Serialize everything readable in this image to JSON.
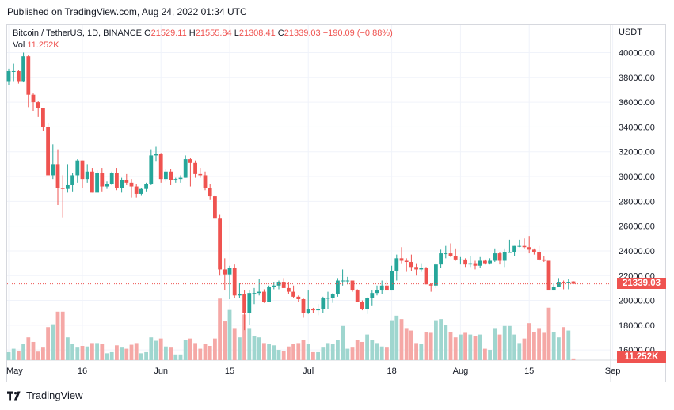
{
  "header": {
    "published": "Published on TradingView.com, Aug 24, 2022 01:34 UTC"
  },
  "legend": {
    "symbol": "Bitcoin / TetherUS, 1D, BINANCE",
    "o_label": "O",
    "o": "21529.11",
    "h_label": "H",
    "h": "21555.84",
    "l_label": "L",
    "l": "21308.41",
    "c_label": "C",
    "c": "21339.03",
    "change": "−190.09 (−0.88%)",
    "vol_label": "Vol",
    "vol": "11.252K"
  },
  "price_axis": {
    "currency": "USDT",
    "labels": [
      "40000.00",
      "38000.00",
      "36000.00",
      "34000.00",
      "32000.00",
      "30000.00",
      "28000.00",
      "26000.00",
      "24000.00",
      "22000.00",
      "20000.00",
      "18000.00",
      "16000.00"
    ]
  },
  "time_axis": {
    "labels": [
      "May",
      "16",
      "Jun",
      "15",
      "Jul",
      "18",
      "Aug",
      "15",
      "Sep"
    ]
  },
  "current_price_tag": "21339.03",
  "current_volume_tag": "11.252K",
  "footer": {
    "brand": "TradingView"
  },
  "colors": {
    "up": "#26a69a",
    "down": "#ef5350",
    "vol_up": "#9fd6cf",
    "vol_down": "#f5a8a6",
    "grid": "#f0f3fa",
    "text": "#131722"
  },
  "chart_data": {
    "type": "candlestick",
    "symbol": "Bitcoin / TetherUS",
    "interval": "1D",
    "exchange": "BINANCE",
    "ylim": [
      15500,
      41500
    ],
    "ticks": [
      16000,
      18000,
      20000,
      22000,
      24000,
      26000,
      28000,
      30000,
      32000,
      34000,
      36000,
      38000,
      40000
    ],
    "candles": [
      {
        "date": "2022-05-01",
        "o": 37700,
        "h": 38700,
        "l": 37400,
        "c": 38500,
        "v": 14
      },
      {
        "date": "2022-05-02",
        "o": 38500,
        "h": 39100,
        "l": 37700,
        "c": 38500,
        "v": 20
      },
      {
        "date": "2022-05-03",
        "o": 38500,
        "h": 38600,
        "l": 37500,
        "c": 37700,
        "v": 16
      },
      {
        "date": "2022-05-04",
        "o": 37700,
        "h": 40000,
        "l": 37600,
        "c": 39700,
        "v": 28
      },
      {
        "date": "2022-05-05",
        "o": 39700,
        "h": 39800,
        "l": 35600,
        "c": 36600,
        "v": 40
      },
      {
        "date": "2022-05-06",
        "o": 36600,
        "h": 36700,
        "l": 35300,
        "c": 36000,
        "v": 32
      },
      {
        "date": "2022-05-07",
        "o": 36000,
        "h": 36100,
        "l": 34800,
        "c": 35500,
        "v": 15
      },
      {
        "date": "2022-05-08",
        "o": 35500,
        "h": 35500,
        "l": 33700,
        "c": 34000,
        "v": 22
      },
      {
        "date": "2022-05-09",
        "o": 34000,
        "h": 34300,
        "l": 30100,
        "c": 30100,
        "v": 58
      },
      {
        "date": "2022-05-10",
        "o": 30100,
        "h": 32600,
        "l": 29800,
        "c": 31000,
        "v": 63
      },
      {
        "date": "2022-05-11",
        "o": 31000,
        "h": 32200,
        "l": 27700,
        "c": 29100,
        "v": 85
      },
      {
        "date": "2022-05-12",
        "o": 29100,
        "h": 30100,
        "l": 26700,
        "c": 29000,
        "v": 85
      },
      {
        "date": "2022-05-13",
        "o": 29000,
        "h": 31000,
        "l": 28700,
        "c": 29300,
        "v": 40
      },
      {
        "date": "2022-05-14",
        "o": 29300,
        "h": 30300,
        "l": 28800,
        "c": 30100,
        "v": 28
      },
      {
        "date": "2022-05-15",
        "o": 30100,
        "h": 31400,
        "l": 29500,
        "c": 31300,
        "v": 22
      },
      {
        "date": "2022-05-16",
        "o": 31300,
        "h": 31300,
        "l": 29100,
        "c": 29800,
        "v": 25
      },
      {
        "date": "2022-05-17",
        "o": 29800,
        "h": 31000,
        "l": 29500,
        "c": 30400,
        "v": 24
      },
      {
        "date": "2022-05-18",
        "o": 30400,
        "h": 30700,
        "l": 28700,
        "c": 28700,
        "v": 30
      },
      {
        "date": "2022-05-19",
        "o": 28700,
        "h": 30500,
        "l": 28700,
        "c": 30300,
        "v": 30
      },
      {
        "date": "2022-05-20",
        "o": 30300,
        "h": 30700,
        "l": 28800,
        "c": 29200,
        "v": 29
      },
      {
        "date": "2022-05-21",
        "o": 29200,
        "h": 29600,
        "l": 29000,
        "c": 29400,
        "v": 12
      },
      {
        "date": "2022-05-22",
        "o": 29400,
        "h": 30400,
        "l": 29300,
        "c": 30300,
        "v": 14
      },
      {
        "date": "2022-05-23",
        "o": 30300,
        "h": 30700,
        "l": 28900,
        "c": 29100,
        "v": 26
      },
      {
        "date": "2022-05-24",
        "o": 29100,
        "h": 29900,
        "l": 28700,
        "c": 29700,
        "v": 22
      },
      {
        "date": "2022-05-25",
        "o": 29700,
        "h": 30200,
        "l": 29300,
        "c": 29500,
        "v": 20
      },
      {
        "date": "2022-05-26",
        "o": 29500,
        "h": 29800,
        "l": 28300,
        "c": 29200,
        "v": 27
      },
      {
        "date": "2022-05-27",
        "o": 29200,
        "h": 29400,
        "l": 28300,
        "c": 28600,
        "v": 30
      },
      {
        "date": "2022-05-28",
        "o": 28600,
        "h": 29100,
        "l": 28500,
        "c": 29000,
        "v": 12
      },
      {
        "date": "2022-05-29",
        "o": 29000,
        "h": 29500,
        "l": 28800,
        "c": 29400,
        "v": 14
      },
      {
        "date": "2022-05-30",
        "o": 29400,
        "h": 32200,
        "l": 29300,
        "c": 31700,
        "v": 40
      },
      {
        "date": "2022-05-31",
        "o": 31700,
        "h": 32400,
        "l": 31200,
        "c": 31800,
        "v": 34
      },
      {
        "date": "2022-06-01",
        "o": 31800,
        "h": 31900,
        "l": 29500,
        "c": 29800,
        "v": 38
      },
      {
        "date": "2022-06-02",
        "o": 29800,
        "h": 30600,
        "l": 29600,
        "c": 30400,
        "v": 24
      },
      {
        "date": "2022-06-03",
        "o": 30400,
        "h": 30600,
        "l": 29300,
        "c": 29700,
        "v": 22
      },
      {
        "date": "2022-06-04",
        "o": 29700,
        "h": 29900,
        "l": 29500,
        "c": 29800,
        "v": 10
      },
      {
        "date": "2022-06-05",
        "o": 29800,
        "h": 30100,
        "l": 29500,
        "c": 29900,
        "v": 10
      },
      {
        "date": "2022-06-06",
        "o": 29900,
        "h": 31700,
        "l": 29900,
        "c": 31400,
        "v": 35
      },
      {
        "date": "2022-06-07",
        "o": 31400,
        "h": 31500,
        "l": 29200,
        "c": 31100,
        "v": 38
      },
      {
        "date": "2022-06-08",
        "o": 31100,
        "h": 31300,
        "l": 29900,
        "c": 30200,
        "v": 30
      },
      {
        "date": "2022-06-09",
        "o": 30200,
        "h": 30700,
        "l": 29900,
        "c": 30100,
        "v": 20
      },
      {
        "date": "2022-06-10",
        "o": 30100,
        "h": 30400,
        "l": 28900,
        "c": 29100,
        "v": 28
      },
      {
        "date": "2022-06-11",
        "o": 29100,
        "h": 29400,
        "l": 28100,
        "c": 28400,
        "v": 25
      },
      {
        "date": "2022-06-12",
        "o": 28400,
        "h": 28500,
        "l": 26600,
        "c": 26600,
        "v": 38
      },
      {
        "date": "2022-06-13",
        "o": 26600,
        "h": 26900,
        "l": 22000,
        "c": 22500,
        "v": 108
      },
      {
        "date": "2022-06-14",
        "o": 22500,
        "h": 23400,
        "l": 20800,
        "c": 22100,
        "v": 68
      },
      {
        "date": "2022-06-15",
        "o": 22100,
        "h": 22800,
        "l": 20100,
        "c": 22600,
        "v": 88
      },
      {
        "date": "2022-06-16",
        "o": 22600,
        "h": 22900,
        "l": 20200,
        "c": 20400,
        "v": 55
      },
      {
        "date": "2022-06-17",
        "o": 20400,
        "h": 21400,
        "l": 20200,
        "c": 20500,
        "v": 40
      },
      {
        "date": "2022-06-18",
        "o": 20500,
        "h": 20800,
        "l": 17600,
        "c": 19000,
        "v": 80
      },
      {
        "date": "2022-06-19",
        "o": 19000,
        "h": 20800,
        "l": 18000,
        "c": 20600,
        "v": 55
      },
      {
        "date": "2022-06-20",
        "o": 20600,
        "h": 21000,
        "l": 19700,
        "c": 20600,
        "v": 42
      },
      {
        "date": "2022-06-21",
        "o": 20600,
        "h": 21700,
        "l": 20400,
        "c": 20700,
        "v": 40
      },
      {
        "date": "2022-06-22",
        "o": 20700,
        "h": 20900,
        "l": 19800,
        "c": 19900,
        "v": 30
      },
      {
        "date": "2022-06-23",
        "o": 19900,
        "h": 21200,
        "l": 19900,
        "c": 21100,
        "v": 28
      },
      {
        "date": "2022-06-24",
        "o": 21100,
        "h": 21500,
        "l": 20900,
        "c": 21200,
        "v": 26
      },
      {
        "date": "2022-06-25",
        "o": 21200,
        "h": 21600,
        "l": 20900,
        "c": 21500,
        "v": 18
      },
      {
        "date": "2022-06-26",
        "o": 21500,
        "h": 21800,
        "l": 21000,
        "c": 21000,
        "v": 16
      },
      {
        "date": "2022-06-27",
        "o": 21000,
        "h": 21500,
        "l": 20500,
        "c": 20700,
        "v": 24
      },
      {
        "date": "2022-06-28",
        "o": 20700,
        "h": 21200,
        "l": 20200,
        "c": 20300,
        "v": 28
      },
      {
        "date": "2022-06-29",
        "o": 20300,
        "h": 20400,
        "l": 19900,
        "c": 20100,
        "v": 30
      },
      {
        "date": "2022-06-30",
        "o": 20100,
        "h": 20200,
        "l": 18600,
        "c": 19000,
        "v": 35
      },
      {
        "date": "2022-07-01",
        "o": 19000,
        "h": 20800,
        "l": 18900,
        "c": 19300,
        "v": 28
      },
      {
        "date": "2022-07-02",
        "o": 19300,
        "h": 19400,
        "l": 19000,
        "c": 19200,
        "v": 14
      },
      {
        "date": "2022-07-03",
        "o": 19200,
        "h": 19700,
        "l": 18800,
        "c": 19300,
        "v": 14
      },
      {
        "date": "2022-07-04",
        "o": 19300,
        "h": 20300,
        "l": 19000,
        "c": 20200,
        "v": 22
      },
      {
        "date": "2022-07-05",
        "o": 20200,
        "h": 20700,
        "l": 19300,
        "c": 20200,
        "v": 30
      },
      {
        "date": "2022-07-06",
        "o": 20200,
        "h": 20600,
        "l": 19800,
        "c": 20500,
        "v": 28
      },
      {
        "date": "2022-07-07",
        "o": 20500,
        "h": 21800,
        "l": 20300,
        "c": 21600,
        "v": 35
      },
      {
        "date": "2022-07-08",
        "o": 21600,
        "h": 22500,
        "l": 21200,
        "c": 21600,
        "v": 60
      },
      {
        "date": "2022-07-09",
        "o": 21600,
        "h": 21900,
        "l": 21300,
        "c": 21600,
        "v": 20
      },
      {
        "date": "2022-07-10",
        "o": 21600,
        "h": 21600,
        "l": 20700,
        "c": 20800,
        "v": 22
      },
      {
        "date": "2022-07-11",
        "o": 20800,
        "h": 20900,
        "l": 19900,
        "c": 19900,
        "v": 35
      },
      {
        "date": "2022-07-12",
        "o": 19900,
        "h": 20000,
        "l": 19200,
        "c": 19300,
        "v": 32
      },
      {
        "date": "2022-07-13",
        "o": 19300,
        "h": 20300,
        "l": 18900,
        "c": 20200,
        "v": 45
      },
      {
        "date": "2022-07-14",
        "o": 20200,
        "h": 20800,
        "l": 19600,
        "c": 20600,
        "v": 35
      },
      {
        "date": "2022-07-15",
        "o": 20600,
        "h": 21200,
        "l": 20400,
        "c": 20800,
        "v": 30
      },
      {
        "date": "2022-07-16",
        "o": 20800,
        "h": 21600,
        "l": 20500,
        "c": 21200,
        "v": 24
      },
      {
        "date": "2022-07-17",
        "o": 21200,
        "h": 21600,
        "l": 20800,
        "c": 20800,
        "v": 22
      },
      {
        "date": "2022-07-18",
        "o": 20800,
        "h": 22800,
        "l": 20800,
        "c": 22400,
        "v": 70
      },
      {
        "date": "2022-07-19",
        "o": 22400,
        "h": 23700,
        "l": 21600,
        "c": 23400,
        "v": 78
      },
      {
        "date": "2022-07-20",
        "o": 23400,
        "h": 24300,
        "l": 23000,
        "c": 23200,
        "v": 72
      },
      {
        "date": "2022-07-21",
        "o": 23200,
        "h": 23400,
        "l": 22300,
        "c": 23100,
        "v": 55
      },
      {
        "date": "2022-07-22",
        "o": 23100,
        "h": 23700,
        "l": 22400,
        "c": 22700,
        "v": 52
      },
      {
        "date": "2022-07-23",
        "o": 22700,
        "h": 23000,
        "l": 22000,
        "c": 22500,
        "v": 30
      },
      {
        "date": "2022-07-24",
        "o": 22500,
        "h": 23000,
        "l": 22300,
        "c": 22600,
        "v": 28
      },
      {
        "date": "2022-07-25",
        "o": 22600,
        "h": 22700,
        "l": 21300,
        "c": 21300,
        "v": 50
      },
      {
        "date": "2022-07-26",
        "o": 21300,
        "h": 21400,
        "l": 20700,
        "c": 21200,
        "v": 48
      },
      {
        "date": "2022-07-27",
        "o": 21200,
        "h": 23000,
        "l": 21000,
        "c": 22900,
        "v": 70
      },
      {
        "date": "2022-07-28",
        "o": 22900,
        "h": 24100,
        "l": 22600,
        "c": 23800,
        "v": 72
      },
      {
        "date": "2022-07-29",
        "o": 23800,
        "h": 24400,
        "l": 23400,
        "c": 23800,
        "v": 62
      },
      {
        "date": "2022-07-30",
        "o": 23800,
        "h": 24600,
        "l": 23500,
        "c": 23600,
        "v": 50
      },
      {
        "date": "2022-07-31",
        "o": 23600,
        "h": 24200,
        "l": 23200,
        "c": 23300,
        "v": 40
      },
      {
        "date": "2022-08-01",
        "o": 23300,
        "h": 23500,
        "l": 22900,
        "c": 23300,
        "v": 45
      },
      {
        "date": "2022-08-02",
        "o": 23300,
        "h": 23400,
        "l": 22700,
        "c": 22900,
        "v": 48
      },
      {
        "date": "2022-08-03",
        "o": 22900,
        "h": 23600,
        "l": 22700,
        "c": 23000,
        "v": 45
      },
      {
        "date": "2022-08-04",
        "o": 23000,
        "h": 23200,
        "l": 22500,
        "c": 22800,
        "v": 42
      },
      {
        "date": "2022-08-05",
        "o": 22800,
        "h": 23500,
        "l": 22600,
        "c": 23200,
        "v": 45
      },
      {
        "date": "2022-08-06",
        "o": 23200,
        "h": 23300,
        "l": 22900,
        "c": 23000,
        "v": 20
      },
      {
        "date": "2022-08-07",
        "o": 23000,
        "h": 23400,
        "l": 22900,
        "c": 23200,
        "v": 18
      },
      {
        "date": "2022-08-08",
        "o": 23200,
        "h": 24200,
        "l": 23100,
        "c": 23800,
        "v": 55
      },
      {
        "date": "2022-08-09",
        "o": 23800,
        "h": 23900,
        "l": 22900,
        "c": 23200,
        "v": 45
      },
      {
        "date": "2022-08-10",
        "o": 23200,
        "h": 24200,
        "l": 22700,
        "c": 23900,
        "v": 60
      },
      {
        "date": "2022-08-11",
        "o": 23900,
        "h": 24900,
        "l": 23900,
        "c": 23900,
        "v": 60
      },
      {
        "date": "2022-08-12",
        "o": 23900,
        "h": 24400,
        "l": 23600,
        "c": 24400,
        "v": 45
      },
      {
        "date": "2022-08-13",
        "o": 24400,
        "h": 24900,
        "l": 24300,
        "c": 24400,
        "v": 30
      },
      {
        "date": "2022-08-14",
        "o": 24400,
        "h": 25000,
        "l": 24200,
        "c": 24300,
        "v": 38
      },
      {
        "date": "2022-08-15",
        "o": 24300,
        "h": 25200,
        "l": 23800,
        "c": 24100,
        "v": 65
      },
      {
        "date": "2022-08-16",
        "o": 24100,
        "h": 24200,
        "l": 23700,
        "c": 23900,
        "v": 50
      },
      {
        "date": "2022-08-17",
        "o": 23900,
        "h": 24400,
        "l": 23200,
        "c": 23300,
        "v": 55
      },
      {
        "date": "2022-08-18",
        "o": 23300,
        "h": 23600,
        "l": 23100,
        "c": 23200,
        "v": 48
      },
      {
        "date": "2022-08-19",
        "o": 23200,
        "h": 23200,
        "l": 20800,
        "c": 20800,
        "v": 92
      },
      {
        "date": "2022-08-20",
        "o": 20800,
        "h": 21400,
        "l": 20800,
        "c": 21100,
        "v": 50
      },
      {
        "date": "2022-08-21",
        "o": 21100,
        "h": 21800,
        "l": 21100,
        "c": 21500,
        "v": 40
      },
      {
        "date": "2022-08-22",
        "o": 21500,
        "h": 21600,
        "l": 20900,
        "c": 21400,
        "v": 58
      },
      {
        "date": "2022-08-23",
        "o": 21400,
        "h": 21700,
        "l": 20900,
        "c": 21500,
        "v": 52
      },
      {
        "date": "2022-08-24",
        "o": 21529,
        "h": 21556,
        "l": 21308,
        "c": 21339,
        "v": 3
      }
    ]
  }
}
